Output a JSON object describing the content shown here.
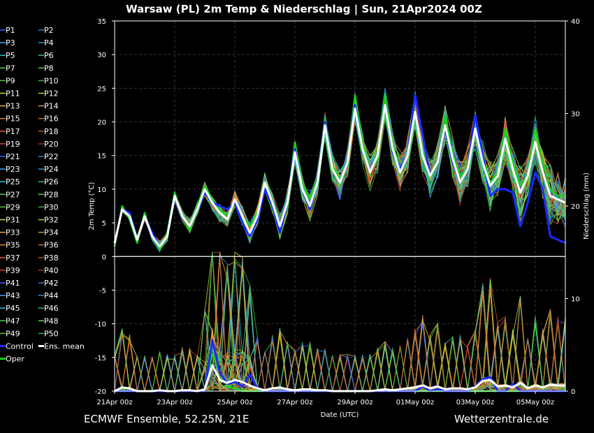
{
  "chart_data": {
    "type": "line",
    "title": "Warsaw  (PL)  2m Temp & Niederschlag | Sun, 21Apr2024 00Z",
    "xlabel": "Date (UTC)",
    "ylabel": "2m Temp (°C)",
    "y2label": "Niederschlag (mm)",
    "x_tick_labels": [
      "21Apr 00z",
      "23Apr 00z",
      "25Apr 00z",
      "27Apr 00z",
      "29Apr 00z",
      "01May 00z",
      "03May 00z",
      "05May 00z"
    ],
    "x_tick_hours": [
      0,
      48,
      96,
      144,
      192,
      240,
      288,
      336
    ],
    "x_range_hours": [
      0,
      360
    ],
    "ylim": [
      -20,
      35
    ],
    "y_ticks": [
      -20,
      -15,
      -10,
      -5,
      0,
      5,
      10,
      15,
      20,
      25,
      30,
      35
    ],
    "y2lim": [
      0,
      40
    ],
    "y2_ticks": [
      0,
      10,
      20,
      30,
      40
    ],
    "grid": true,
    "legend_placement": "left",
    "legend": [
      "P1",
      "P2",
      "P3",
      "P4",
      "P5",
      "P6",
      "P7",
      "P8",
      "P9",
      "P10",
      "P11",
      "P12",
      "P13",
      "P14",
      "P15",
      "P16",
      "P17",
      "P18",
      "P19",
      "P20",
      "P21",
      "P22",
      "P23",
      "P24",
      "P25",
      "P26",
      "P27",
      "P28",
      "P29",
      "P30",
      "P31",
      "P32",
      "P33",
      "P34",
      "P35",
      "P36",
      "P37",
      "P38",
      "P39",
      "P40",
      "P41",
      "P42",
      "P43",
      "P44",
      "P45",
      "P46",
      "P47",
      "P48",
      "P49",
      "P50",
      "Control",
      "Ens. mean",
      "Oper"
    ],
    "series_colors": {
      "members": [
        "#4060ff",
        "#3a78d8",
        "#44aaff",
        "#2a9fd6",
        "#20c0c0",
        "#30c090",
        "#40d060",
        "#50e040",
        "#60c030",
        "#2fb84a",
        "#c8d040",
        "#d0c830",
        "#e0b030",
        "#d0a040",
        "#e08030",
        "#c87030",
        "#e06030",
        "#c05028",
        "#d04030",
        "#b03020"
      ],
      "control": "#1a2bff",
      "mean": "#ffffff",
      "oper": "#19d219"
    },
    "series": [
      {
        "name": "Ens. mean",
        "x": [
          0,
          6,
          12,
          18,
          24,
          30,
          36,
          42,
          48,
          54,
          60,
          66,
          72,
          78,
          84,
          90,
          96,
          102,
          108,
          114,
          120,
          126,
          132,
          138,
          144,
          150,
          156,
          162,
          168,
          174,
          180,
          186,
          192,
          198,
          204,
          210,
          216,
          222,
          228,
          234,
          240,
          246,
          252,
          258,
          264,
          270,
          276,
          282,
          288,
          294,
          300,
          306,
          312,
          318,
          324,
          330,
          336,
          342,
          348,
          354,
          360
        ],
        "y": [
          2,
          7,
          6,
          2.5,
          6,
          3,
          1.5,
          3,
          9,
          6,
          4.5,
          7,
          10,
          8,
          6.5,
          5.5,
          8.5,
          6,
          3.5,
          6,
          11,
          8,
          4.5,
          8,
          15.5,
          10,
          7.5,
          11,
          19.5,
          13,
          11,
          14,
          22,
          16,
          12.5,
          15,
          22.5,
          16,
          12.5,
          15,
          21.5,
          15,
          12,
          14,
          19.5,
          14.5,
          11,
          13,
          19,
          14,
          10.5,
          12,
          17.5,
          13,
          9.5,
          12,
          17,
          12.5,
          9,
          8.5,
          8
        ]
      },
      {
        "name": "Control",
        "x": [
          0,
          6,
          12,
          18,
          24,
          30,
          36,
          42,
          48,
          54,
          60,
          66,
          72,
          78,
          84,
          90,
          96,
          102,
          108,
          114,
          120,
          126,
          132,
          138,
          144,
          150,
          156,
          162,
          168,
          174,
          180,
          186,
          192,
          198,
          204,
          210,
          216,
          222,
          228,
          234,
          240,
          246,
          252,
          258,
          264,
          270,
          276,
          282,
          288,
          294,
          300,
          306,
          312,
          318,
          324,
          330,
          336,
          342,
          348,
          354,
          360
        ],
        "y": [
          2,
          7,
          6.5,
          2.5,
          6,
          3.5,
          1.5,
          3,
          9,
          6,
          4.5,
          7,
          9.5,
          8,
          7.5,
          7,
          8,
          5,
          3,
          5.5,
          10,
          7.5,
          3.5,
          8,
          16,
          10,
          7,
          11,
          20,
          13,
          11,
          14,
          22.5,
          16,
          12.5,
          15,
          22.5,
          15.5,
          13,
          15,
          24,
          18,
          12,
          14,
          19,
          14,
          11,
          13,
          21,
          15,
          9,
          10,
          10,
          9.5,
          4.5,
          8,
          12.5,
          10,
          3,
          2.5,
          2
        ]
      },
      {
        "name": "Oper",
        "x": [
          0,
          6,
          12,
          18,
          24,
          30,
          36,
          42,
          48,
          54,
          60,
          66,
          72,
          78,
          84,
          90,
          96,
          102,
          108,
          114,
          120,
          126,
          132,
          138,
          144,
          150,
          156,
          162,
          168,
          174,
          180,
          186,
          192,
          198,
          204,
          210,
          216,
          222,
          228,
          234,
          240,
          246,
          252,
          258,
          264,
          270,
          276,
          282,
          288,
          294,
          300,
          306,
          312,
          318,
          324,
          330,
          336,
          342,
          348,
          354,
          360
        ],
        "y": [
          1.5,
          7.5,
          5.5,
          2,
          6.5,
          3,
          1,
          3.5,
          9.5,
          6,
          4,
          7.5,
          10.5,
          8.5,
          7,
          6,
          8,
          6,
          4.5,
          6.5,
          10,
          7,
          4,
          8,
          17,
          11,
          8.5,
          11.5,
          20.5,
          13.5,
          11.5,
          14,
          24,
          17,
          12.5,
          14.5,
          24,
          16.5,
          13,
          15,
          21,
          15.5,
          12,
          13.5,
          21,
          15,
          12,
          13,
          21,
          15,
          11,
          12.5,
          19,
          14,
          10.5,
          12,
          19,
          14,
          10,
          9,
          9
        ]
      },
      {
        "name": "Ens. mean precip",
        "axis": "y2",
        "x": [
          0,
          6,
          12,
          18,
          24,
          30,
          36,
          42,
          48,
          54,
          60,
          66,
          72,
          78,
          84,
          90,
          96,
          102,
          108,
          114,
          120,
          126,
          132,
          138,
          144,
          150,
          156,
          162,
          168,
          174,
          180,
          186,
          192,
          198,
          204,
          210,
          216,
          222,
          228,
          234,
          240,
          246,
          252,
          258,
          264,
          270,
          276,
          282,
          288,
          294,
          300,
          306,
          312,
          318,
          324,
          330,
          336,
          342,
          348,
          354,
          360
        ],
        "y": [
          0,
          0.4,
          0.3,
          0,
          0,
          0,
          0.1,
          0,
          0,
          0.1,
          0.1,
          0,
          0.2,
          2.8,
          1.2,
          0.9,
          1.2,
          1,
          0.6,
          0.3,
          0.1,
          0.3,
          0.4,
          0.2,
          0.1,
          0.2,
          0.2,
          0.1,
          0.1,
          0,
          0,
          0,
          0,
          0,
          0,
          0.1,
          0.2,
          0.1,
          0.2,
          0.3,
          0.4,
          0.6,
          0.3,
          0.5,
          0.2,
          0.3,
          0.3,
          0.2,
          0.4,
          1.1,
          1.2,
          0.5,
          0.6,
          0.4,
          0.9,
          0.3,
          0.6,
          0.4,
          0.7,
          0.6,
          0.6
        ]
      },
      {
        "name": "Control precip",
        "axis": "y2",
        "x": [
          0,
          6,
          12,
          18,
          24,
          30,
          36,
          42,
          48,
          54,
          60,
          66,
          72,
          78,
          84,
          90,
          96,
          102,
          108,
          114,
          120,
          126,
          132,
          138,
          144,
          150,
          156,
          162,
          168,
          174,
          180,
          186,
          192,
          198,
          204,
          210,
          216,
          222,
          228,
          234,
          240,
          246,
          252,
          258,
          264,
          270,
          276,
          282,
          288,
          294,
          300,
          306,
          312,
          318,
          324,
          330,
          336,
          342,
          348,
          354,
          360
        ],
        "y": [
          0,
          0,
          0,
          0,
          0,
          0,
          0,
          0,
          0,
          0,
          0,
          0,
          0,
          5.5,
          2,
          0.8,
          1,
          0.5,
          1.8,
          0.3,
          0,
          0,
          0,
          0,
          0,
          0,
          0,
          0,
          0,
          0,
          0,
          0,
          0,
          0,
          0,
          0,
          0,
          0,
          0,
          0,
          0,
          0.5,
          0,
          0.2,
          0,
          0,
          0,
          0,
          0.5,
          1.3,
          1.5,
          0,
          0,
          0.8,
          0,
          0,
          0,
          0,
          0,
          0,
          0
        ]
      },
      {
        "name": "Oper precip",
        "axis": "y2",
        "x": [
          0,
          6,
          12,
          18,
          24,
          30,
          36,
          42,
          48,
          54,
          60,
          66,
          72,
          78,
          84,
          90,
          96,
          102,
          108,
          114,
          120,
          126,
          132,
          138,
          144,
          150,
          156,
          162,
          168,
          174,
          180,
          186,
          192,
          198,
          204,
          210,
          216,
          222,
          228,
          234,
          240,
          246,
          252,
          258,
          264,
          270,
          276,
          282,
          288,
          294,
          300,
          306,
          312,
          318,
          324,
          330,
          336,
          342,
          348,
          354,
          360
        ],
        "y": [
          0,
          0.3,
          0,
          0,
          0,
          0,
          0,
          0,
          0,
          0,
          0,
          0,
          0,
          4,
          2,
          0.5,
          0.3,
          0,
          0,
          0,
          0,
          0,
          0,
          0,
          0,
          0,
          0,
          0,
          0,
          0,
          0,
          0,
          0,
          0,
          0,
          0,
          0,
          0,
          0,
          0,
          0,
          0,
          0,
          0,
          0,
          0,
          0,
          0,
          0,
          0,
          0,
          0,
          0,
          0,
          0,
          0,
          0,
          0,
          0,
          0,
          0.2
        ]
      }
    ]
  },
  "footer": {
    "left": "ECMWF Ensemble, 52.25N, 21E",
    "right": "Wetterzentrale.de"
  }
}
